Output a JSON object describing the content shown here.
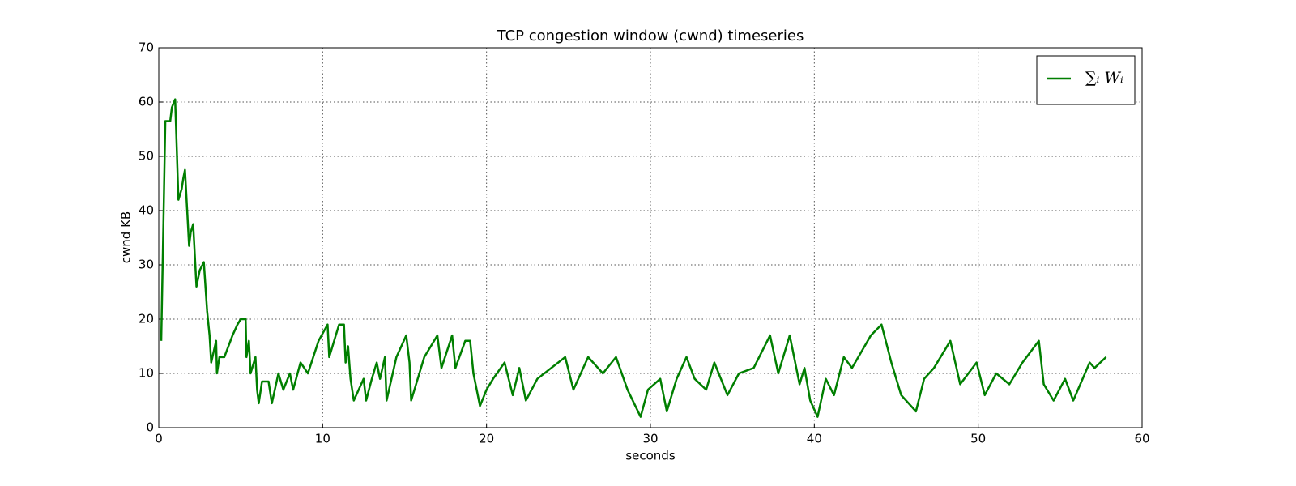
{
  "chart_data": {
    "type": "line",
    "title": "TCP congestion window (cwnd) timeseries",
    "xlabel": "seconds",
    "ylabel": "cwnd KB",
    "xlim": [
      0,
      60
    ],
    "xticks": [
      0,
      10,
      20,
      30,
      40,
      50,
      60
    ],
    "ylim": [
      0,
      70
    ],
    "yticks": [
      0,
      10,
      20,
      30,
      40,
      50,
      60,
      70
    ],
    "grid": true,
    "legend": "upper right",
    "x": [
      0.15,
      0.4,
      0.7,
      0.8,
      1.0,
      1.2,
      1.4,
      1.5,
      1.6,
      1.85,
      1.95,
      2.1,
      2.3,
      2.5,
      2.75,
      2.95,
      3.1,
      3.2,
      3.5,
      3.55,
      3.7,
      4.0,
      4.5,
      4.8,
      5.0,
      5.3,
      5.35,
      5.5,
      5.6,
      5.9,
      6.0,
      6.1,
      6.3,
      6.7,
      6.9,
      7.3,
      7.6,
      8.0,
      8.2,
      8.65,
      9.1,
      9.75,
      10.3,
      10.4,
      11.0,
      11.3,
      11.4,
      11.55,
      11.7,
      11.9,
      12.5,
      12.65,
      13.0,
      13.3,
      13.5,
      13.8,
      13.9,
      14.2,
      14.5,
      15.1,
      15.3,
      15.4,
      15.8,
      16.2,
      17.0,
      17.25,
      17.9,
      18.1,
      18.7,
      19.0,
      19.2,
      19.6,
      20.0,
      20.4,
      21.1,
      21.6,
      22.0,
      22.4,
      23.1,
      24.8,
      25.3,
      26.2,
      27.1,
      27.9,
      28.6,
      29.4,
      29.85,
      30.6,
      31.0,
      31.6,
      32.2,
      32.7,
      33.4,
      33.9,
      34.7,
      35.4,
      36.3,
      37.3,
      37.8,
      38.5,
      39.1,
      39.4,
      39.75,
      40.2,
      40.7,
      41.2,
      41.8,
      42.3,
      43.45,
      44.1,
      44.7,
      45.3,
      46.2,
      46.7,
      47.3,
      48.3,
      48.9,
      49.9,
      50.4,
      51.1,
      51.9,
      52.7,
      53.7,
      54.0,
      54.6,
      55.3,
      55.8,
      56.8,
      57.1,
      57.8
    ],
    "series": [
      {
        "name": "∑ᵢ Wᵢ",
        "color": "#007f00",
        "values": [
          16,
          56.5,
          56.5,
          59,
          60.5,
          42,
          44,
          46,
          47.5,
          33.5,
          36,
          37.5,
          26,
          29,
          30.5,
          21.5,
          17,
          12,
          16,
          10,
          13,
          13,
          17,
          19,
          20,
          20,
          13,
          16,
          10,
          13,
          7,
          4.5,
          8.5,
          8.5,
          4.5,
          10,
          7,
          10,
          7,
          12,
          10,
          16,
          19,
          13,
          19,
          19,
          12,
          15,
          9,
          5,
          9,
          5,
          9,
          12,
          9,
          13,
          5,
          9,
          13,
          17,
          12,
          5,
          9,
          13,
          17,
          11,
          17,
          11,
          16,
          16,
          10,
          4,
          7,
          9,
          12,
          6,
          11,
          5,
          9,
          13,
          7,
          13,
          10,
          13,
          7,
          2,
          7,
          9,
          3,
          9,
          13,
          9,
          7,
          12,
          6,
          10,
          11,
          17,
          10,
          17,
          8,
          11,
          5,
          2,
          9,
          6,
          13,
          11,
          17,
          19,
          12,
          6,
          3,
          9,
          11,
          16,
          8,
          12,
          6,
          10,
          8,
          12,
          16,
          8,
          5,
          9,
          5,
          12,
          11,
          13
        ]
      }
    ]
  }
}
